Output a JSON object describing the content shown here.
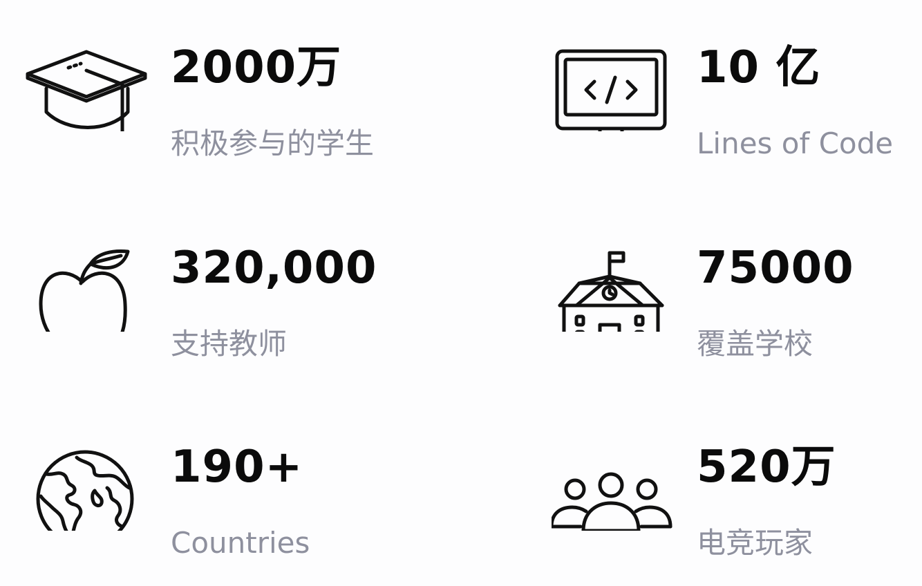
{
  "stats": [
    {
      "value": "2000万",
      "label": "积极参与的学生",
      "icon": "graduation-cap-icon"
    },
    {
      "value": "10 亿",
      "label": "Lines of Code",
      "icon": "code-monitor-icon"
    },
    {
      "value": "320,000",
      "label": "支持教师",
      "icon": "apple-icon"
    },
    {
      "value": "75000",
      "label": "覆盖学校",
      "icon": "school-building-icon"
    },
    {
      "value": "190+",
      "label": "Countries",
      "icon": "globe-icon"
    },
    {
      "value": "520万",
      "label": "电竞玩家",
      "icon": "users-group-icon"
    }
  ],
  "colors": {
    "value": "#0b0b0b",
    "label": "#8e909e",
    "background": "#fdfdfe"
  }
}
